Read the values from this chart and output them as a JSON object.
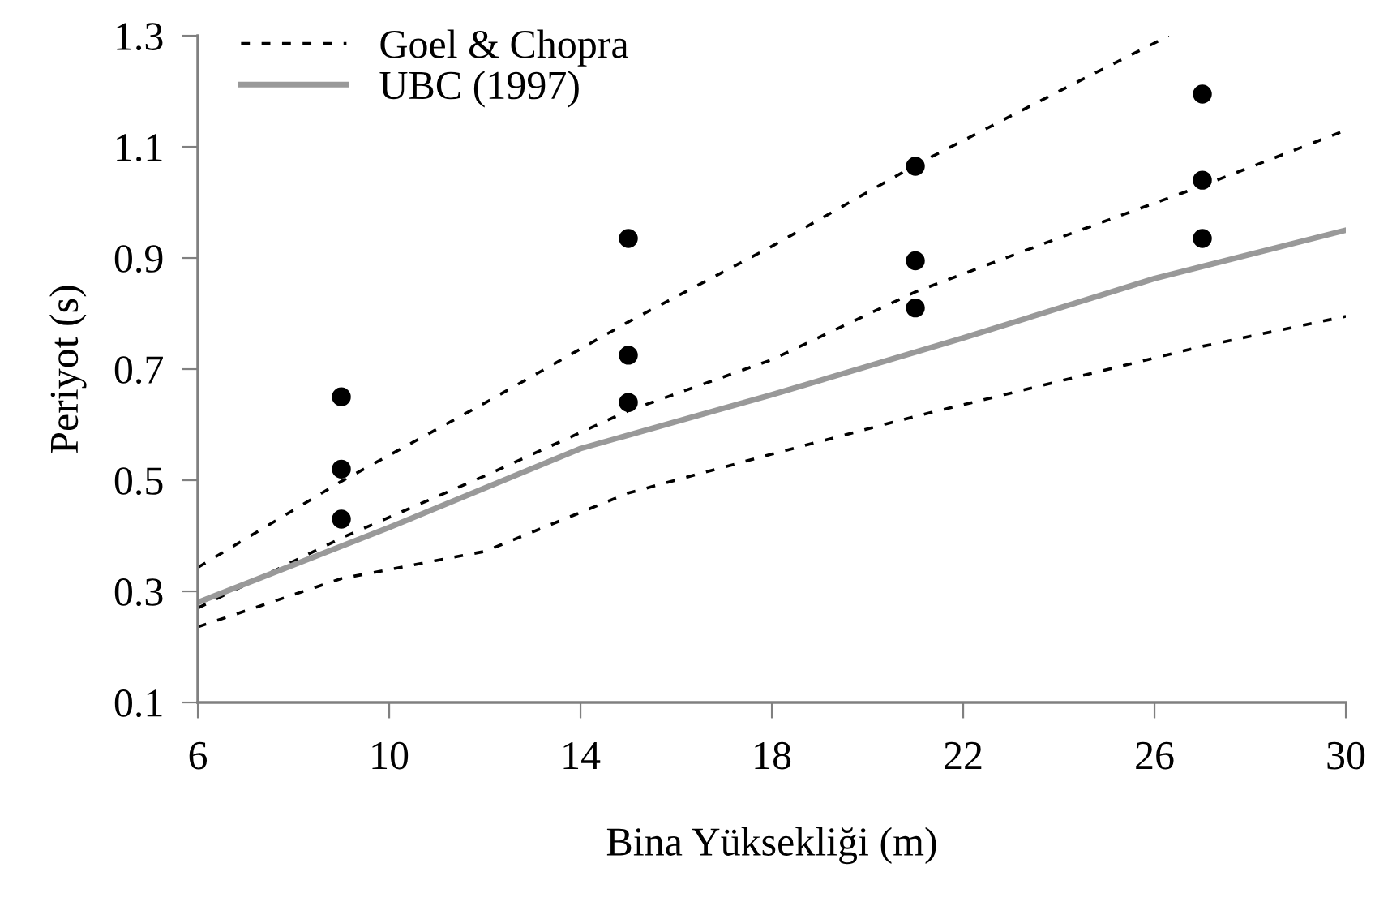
{
  "chart_data": {
    "type": "scatter",
    "xlabel": "Bina Yüksekliği (m)",
    "ylabel": "Periyot (s)",
    "xlim": [
      6,
      30
    ],
    "xticks": [
      6,
      10,
      14,
      18,
      22,
      26,
      30
    ],
    "ylim": [
      0.1,
      1.3
    ],
    "yticks": [
      0.1,
      0.3,
      0.5,
      0.7,
      0.9,
      1.1,
      1.3
    ],
    "grid": false,
    "legend": "top left",
    "series": [
      {
        "name": "Goel & Chopra",
        "type": "line",
        "color": "#000000",
        "line_style": "dashed",
        "marker": "none",
        "x": [
          6,
          9,
          12,
          15,
          18,
          21,
          24,
          26.3
        ],
        "values": [
          0.343,
          0.498,
          0.639,
          0.785,
          0.921,
          1.067,
          1.2,
          1.3
        ]
      },
      {
        "type": "line",
        "color": "#000000",
        "line_style": "dashed",
        "marker": "none",
        "x": [
          6,
          9,
          12,
          15,
          18,
          21,
          24,
          27,
          30
        ],
        "values": [
          0.27,
          0.396,
          0.508,
          0.625,
          0.717,
          0.839,
          0.936,
          1.03,
          1.13
        ]
      },
      {
        "type": "line",
        "color": "#000000",
        "line_style": "dashed",
        "marker": "none",
        "x": [
          6,
          9,
          12,
          15,
          18,
          21,
          24,
          27,
          30
        ],
        "values": [
          0.236,
          0.323,
          0.372,
          0.477,
          0.547,
          0.615,
          0.678,
          0.741,
          0.795
        ]
      },
      {
        "name": "UBC (1997)",
        "type": "line",
        "color": "#999999",
        "line_style": "solid",
        "marker": "none",
        "x": [
          6,
          10,
          14,
          18,
          22,
          26,
          30
        ],
        "values": [
          0.28,
          0.415,
          0.557,
          0.654,
          0.756,
          0.863,
          0.95
        ]
      },
      {
        "color": "#000000",
        "marker": "circle",
        "x": [
          9,
          9,
          9,
          15,
          15,
          15,
          21,
          21,
          21,
          27,
          27,
          27
        ],
        "values": [
          0.65,
          0.52,
          0.43,
          0.935,
          0.725,
          0.64,
          1.065,
          0.895,
          0.81,
          1.195,
          1.04,
          0.935
        ]
      }
    ]
  }
}
